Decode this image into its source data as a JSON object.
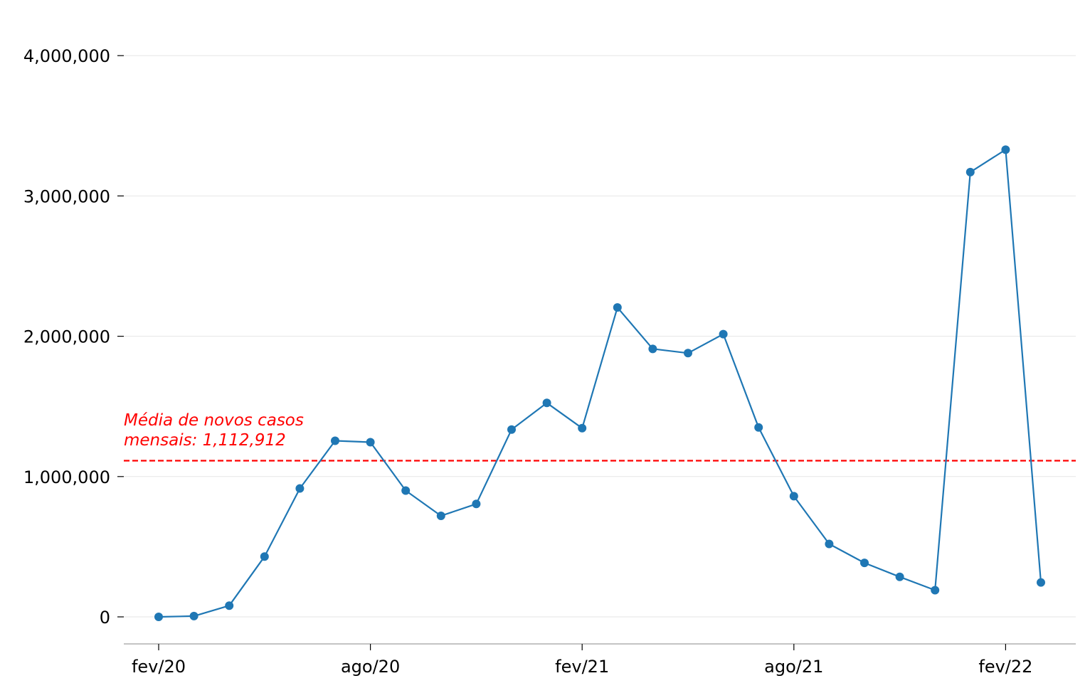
{
  "chart_data": {
    "type": "line",
    "title": "",
    "xlabel": "",
    "ylabel": "",
    "x": [
      "fev/20",
      "mar/20",
      "abr/20",
      "mai/20",
      "jun/20",
      "jul/20",
      "ago/20",
      "set/20",
      "out/20",
      "nov/20",
      "dez/20",
      "jan/21",
      "fev/21",
      "mar/21",
      "abr/21",
      "mai/21",
      "jun/21",
      "jul/21",
      "ago/21",
      "set/21",
      "out/21",
      "nov/21",
      "dez/21",
      "jan/22",
      "fev/22",
      "mar/22"
    ],
    "series": [
      {
        "values": [
          2,
          5800,
          80000,
          430000,
          915000,
          1255000,
          1245000,
          900000,
          720000,
          805000,
          1335000,
          1525000,
          1345000,
          2205000,
          1910000,
          1880000,
          2015000,
          1350000,
          860000,
          520000,
          385000,
          285000,
          190000,
          3170000,
          3330000,
          245000
        ],
        "color": "#1f77b4"
      }
    ],
    "ylim": [
      -200000,
      4400000
    ],
    "y_ticks": [
      0,
      1000000,
      2000000,
      3000000,
      4000000
    ],
    "y_tick_labels": [
      "0",
      "1,000,000",
      "2,000,000",
      "3,000,000",
      "4,000,000"
    ],
    "x_ticks": [
      "fev/20",
      "ago/20",
      "fev/21",
      "ago/21",
      "fev/22"
    ],
    "x_tick_labels": [
      "fev/20",
      "ago/20",
      "fev/21",
      "ago/21",
      "fev/22"
    ],
    "grid": "horizontal",
    "reference_line": {
      "value": 1112912,
      "color": "#ff0000",
      "style": "dashed",
      "label_line1": "Média de novos casos",
      "label_line2": "mensais: 1,112,912"
    },
    "axis_color": "#b0b0b0",
    "grid_color": "#e6e6e6"
  }
}
